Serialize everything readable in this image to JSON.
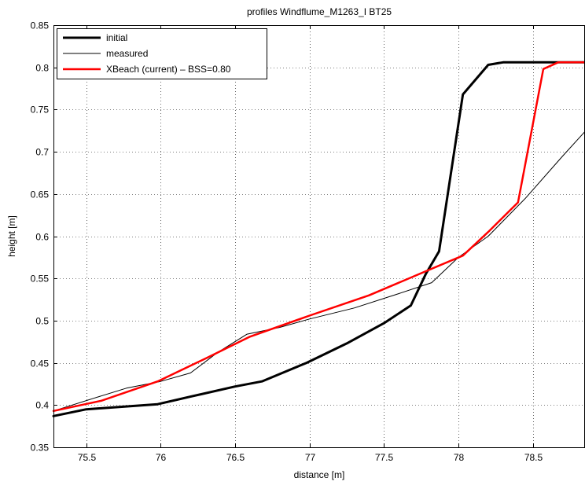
{
  "chart_data": {
    "type": "line",
    "title": "profiles Windflume_M1263_I BT25",
    "xlabel": "distance [m]",
    "ylabel": "height [m]",
    "xlim": [
      75.28,
      78.85
    ],
    "ylim": [
      0.35,
      0.85
    ],
    "x_ticks": [
      75.5,
      76,
      76.5,
      77,
      77.5,
      78,
      78.5
    ],
    "x_tick_labels": [
      "75.5",
      "76",
      "76.5",
      "77",
      "77.5",
      "78",
      "78.5"
    ],
    "y_ticks": [
      0.35,
      0.4,
      0.45,
      0.5,
      0.55,
      0.6,
      0.65,
      0.7,
      0.75,
      0.8,
      0.85
    ],
    "y_tick_labels": [
      "0.35",
      "0.4",
      "0.45",
      "0.5",
      "0.55",
      "0.6",
      "0.65",
      "0.7",
      "0.75",
      "0.8",
      "0.85"
    ],
    "grid": true,
    "legend_position": "top-left",
    "series": [
      {
        "name": "initial",
        "color": "#000000",
        "x": [
          75.28,
          75.5,
          75.98,
          76.2,
          76.5,
          76.68,
          76.98,
          77.25,
          77.5,
          77.68,
          77.78,
          77.87,
          78.03,
          78.2,
          78.3,
          78.5,
          78.85
        ],
        "y": [
          0.387,
          0.395,
          0.401,
          0.41,
          0.422,
          0.428,
          0.45,
          0.473,
          0.497,
          0.518,
          0.555,
          0.582,
          0.768,
          0.803,
          0.806,
          0.806,
          0.806
        ]
      },
      {
        "name": "measured",
        "color": "#000000",
        "x": [
          75.28,
          75.55,
          75.77,
          76.0,
          76.2,
          76.38,
          76.58,
          76.8,
          77.0,
          77.3,
          77.6,
          77.82,
          78.0,
          78.2,
          78.45,
          78.7,
          78.85
        ],
        "y": [
          0.393,
          0.408,
          0.42,
          0.428,
          0.438,
          0.462,
          0.484,
          0.492,
          0.502,
          0.515,
          0.532,
          0.545,
          0.575,
          0.6,
          0.645,
          0.695,
          0.724
        ]
      },
      {
        "name": "XBeach (current) – BSS=0.80",
        "color": "#ff0000",
        "x": [
          75.28,
          75.6,
          75.98,
          76.3,
          76.6,
          77.0,
          77.4,
          77.8,
          78.03,
          78.2,
          78.4,
          78.57,
          78.67,
          78.85
        ],
        "y": [
          0.393,
          0.405,
          0.428,
          0.455,
          0.481,
          0.506,
          0.53,
          0.56,
          0.577,
          0.605,
          0.64,
          0.798,
          0.806,
          0.806
        ]
      }
    ]
  }
}
